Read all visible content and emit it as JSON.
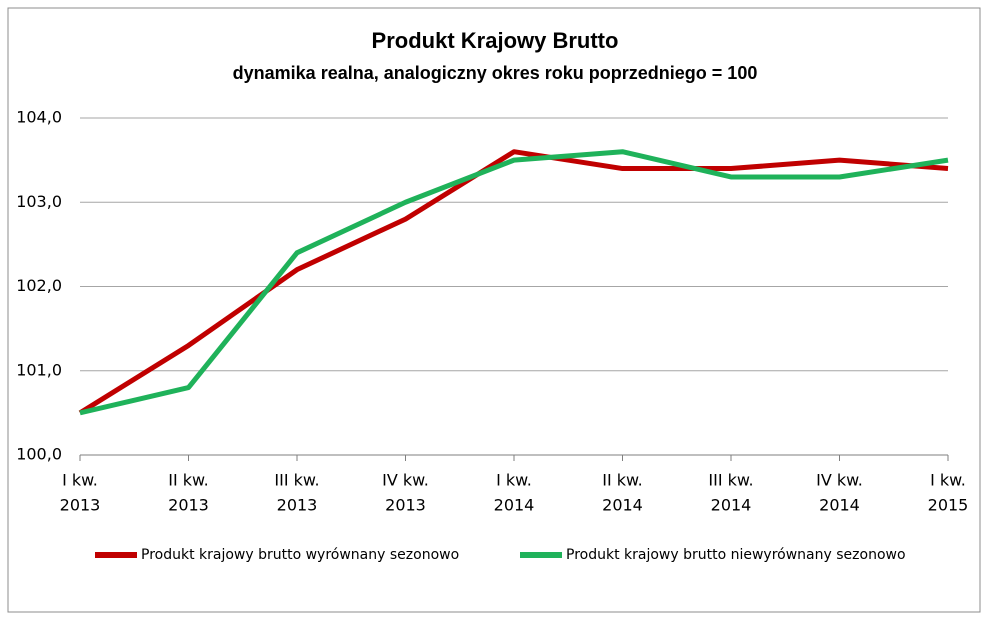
{
  "chart_data": {
    "type": "line",
    "title": "Produkt Krajowy Brutto",
    "subtitle": "dynamika realna, analogiczny okres roku poprzedniego = 100",
    "categories": [
      [
        "I kw.",
        "2013"
      ],
      [
        "II kw.",
        "2013"
      ],
      [
        "III kw.",
        "2013"
      ],
      [
        "IV kw.",
        "2013"
      ],
      [
        "I kw.",
        "2014"
      ],
      [
        "II kw.",
        "2014"
      ],
      [
        "III kw.",
        "2014"
      ],
      [
        "IV kw.",
        "2014"
      ],
      [
        "I kw.",
        "2015"
      ]
    ],
    "series": [
      {
        "name": "Produkt krajowy brutto wyrównany sezonowo",
        "color": "#c00000",
        "values": [
          100.5,
          101.3,
          102.2,
          102.8,
          103.6,
          103.4,
          103.4,
          103.5,
          103.4
        ]
      },
      {
        "name": "Produkt krajowy brutto niewyrównany sezonowo",
        "color": "#1fb25a",
        "values": [
          100.5,
          100.8,
          102.4,
          103.0,
          103.5,
          103.6,
          103.3,
          103.3,
          103.5
        ]
      }
    ],
    "ylim": [
      100,
      104
    ],
    "yticks": [
      {
        "value": 100,
        "label": "100,0"
      },
      {
        "value": 101,
        "label": "101,0"
      },
      {
        "value": 102,
        "label": "102,0"
      },
      {
        "value": 103,
        "label": "103,0"
      },
      {
        "value": 104,
        "label": "104,0"
      }
    ],
    "grid": true
  }
}
